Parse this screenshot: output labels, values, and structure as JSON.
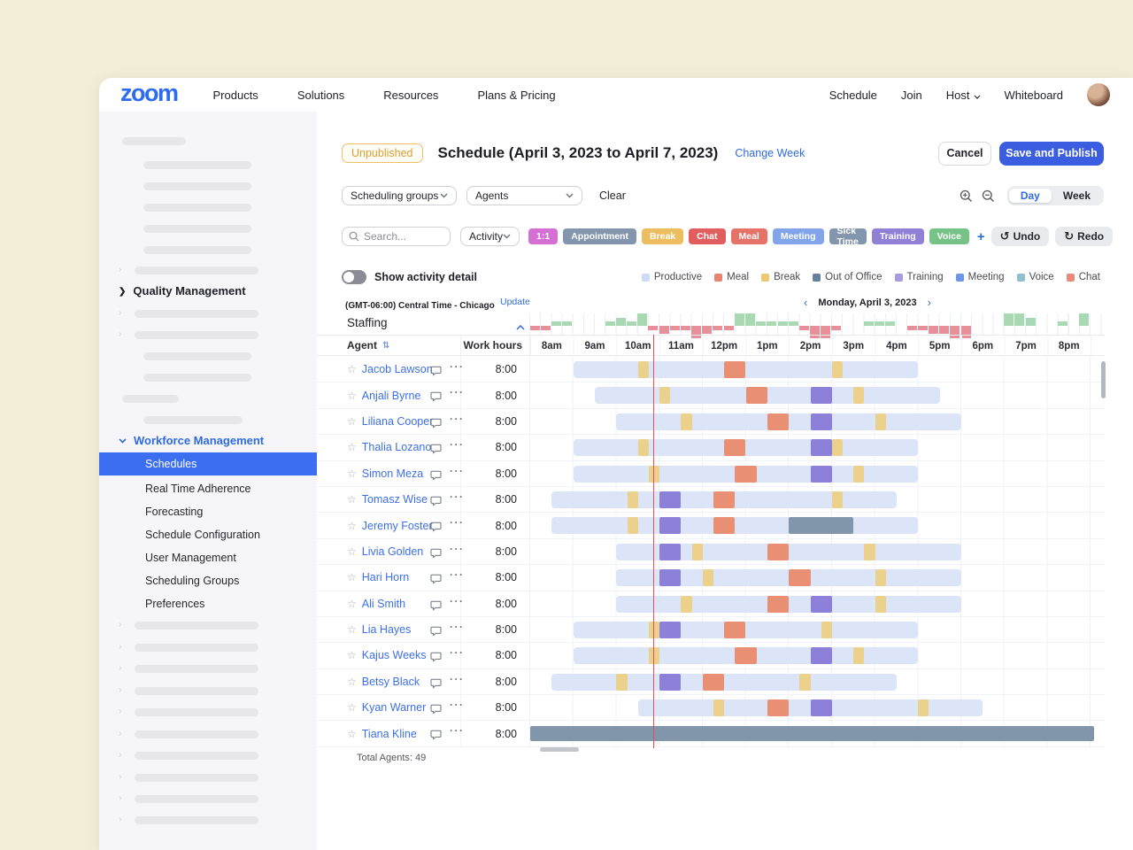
{
  "topnav": {
    "logo": "zoom",
    "left_items": [
      "Products",
      "Solutions",
      "Resources",
      "Plans & Pricing"
    ],
    "right_items": [
      "Schedule",
      "Join",
      "Host",
      "Whiteboard"
    ]
  },
  "sidebar": {
    "quality_management": "Quality Management",
    "workforce_management": "Workforce Management",
    "selected_item": "Schedules",
    "sub_items": [
      "Real Time Adherence",
      "Forecasting",
      "Schedule Configuration",
      "User Management",
      "Scheduling Groups",
      "Preferences"
    ]
  },
  "header": {
    "badge": "Unpublished",
    "title": "Schedule (April 3, 2023 to April 7, 2023)",
    "change_week": "Change Week",
    "cancel": "Cancel",
    "save": "Save and Publish"
  },
  "filters": {
    "scheduling_groups": "Scheduling groups",
    "agents_filter": "Agents",
    "clear": "Clear",
    "search_placeholder": "Search...",
    "activity": "Activity",
    "add": "+",
    "undo": "Undo",
    "redo": "Redo",
    "view_day": "Day",
    "view_week": "Week",
    "chips": [
      {
        "label": "1:1",
        "color": "#d66fd4"
      },
      {
        "label": "Appointment",
        "color": "#8496ae"
      },
      {
        "label": "Break",
        "color": "#ecbe5f"
      },
      {
        "label": "Chat",
        "color": "#e25d5d"
      },
      {
        "label": "Meal",
        "color": "#e57368"
      },
      {
        "label": "Meeting",
        "color": "#81a4ea"
      },
      {
        "label": "Sick Time",
        "color": "#8496ae"
      },
      {
        "label": "Training",
        "color": "#9181d6"
      },
      {
        "label": "Voice",
        "color": "#77c387"
      }
    ]
  },
  "detail_bar": {
    "show_activity_detail": "Show activity detail",
    "legend": [
      {
        "label": "Productive",
        "color": "#ccdcf5"
      },
      {
        "label": "Meal",
        "color": "#e8846d"
      },
      {
        "label": "Break",
        "color": "#ecca74"
      },
      {
        "label": "Out of Office",
        "color": "#64809c"
      },
      {
        "label": "Training",
        "color": "#a89ade"
      },
      {
        "label": "Meeting",
        "color": "#6f96e8"
      },
      {
        "label": "Voice",
        "color": "#8fc0cf"
      },
      {
        "label": "Chat",
        "color": "#e8897b"
      }
    ]
  },
  "schedule": {
    "timezone": "(GMT-06:00) Central Time - Chicago",
    "update": "Update",
    "date": "Monday, April 3, 2023",
    "staffing_label": "Staffing",
    "agent_col": "Agent",
    "work_hours_col": "Work hours",
    "hours": [
      "8am",
      "9am",
      "10am",
      "11am",
      "12pm",
      "1pm",
      "2pm",
      "3pm",
      "4pm",
      "5pm",
      "6pm",
      "7pm",
      "8pm"
    ],
    "total_agents": "Total Agents: 49",
    "staffing_data": [
      -1,
      -1,
      1,
      1,
      0,
      0,
      0,
      1,
      2,
      1,
      3,
      -1,
      -2,
      -1,
      -1,
      -3,
      -2,
      -1,
      -1,
      3,
      3,
      1,
      1,
      1,
      1,
      -1,
      -3,
      -3,
      -1,
      0,
      0,
      1,
      1,
      1,
      0,
      -1,
      -1,
      -2,
      -2,
      -3,
      -3,
      0,
      0,
      0,
      3,
      3,
      2,
      0,
      0,
      1,
      0,
      3
    ],
    "agents": [
      {
        "name": "Jacob Lawson",
        "work_hours": "8:00",
        "start": 1,
        "end": 9,
        "segments": [
          [
            "break",
            2.5,
            0.25
          ],
          [
            "meal",
            4.5,
            0.5
          ],
          [
            "break",
            7,
            0.25
          ]
        ]
      },
      {
        "name": "Anjali Byrne",
        "work_hours": "8:00",
        "start": 1.5,
        "end": 9.5,
        "segments": [
          [
            "break",
            3,
            0.25
          ],
          [
            "meal",
            5,
            0.5
          ],
          [
            "training",
            6.5,
            0.5
          ],
          [
            "break",
            7.5,
            0.25
          ]
        ]
      },
      {
        "name": "Liliana Cooper",
        "work_hours": "8:00",
        "start": 2,
        "end": 10,
        "segments": [
          [
            "break",
            3.5,
            0.25
          ],
          [
            "meal",
            5.5,
            0.5
          ],
          [
            "training",
            6.5,
            0.5
          ],
          [
            "break",
            8,
            0.25
          ]
        ]
      },
      {
        "name": "Thalia Lozano",
        "work_hours": "8:00",
        "start": 1,
        "end": 9,
        "segments": [
          [
            "break",
            2.5,
            0.25
          ],
          [
            "meal",
            4.5,
            0.5
          ],
          [
            "training",
            6.5,
            0.5
          ],
          [
            "break",
            7,
            0.25
          ]
        ]
      },
      {
        "name": "Simon Meza",
        "work_hours": "8:00",
        "start": 1,
        "end": 9,
        "segments": [
          [
            "break",
            2.75,
            0.25
          ],
          [
            "meal",
            4.75,
            0.5
          ],
          [
            "training",
            6.5,
            0.5
          ],
          [
            "break",
            7.5,
            0.25
          ]
        ]
      },
      {
        "name": "Tomasz Wise",
        "work_hours": "8:00",
        "start": 0.5,
        "end": 8.5,
        "segments": [
          [
            "break",
            2.25,
            0.25
          ],
          [
            "training",
            3,
            0.5
          ],
          [
            "meal",
            4.25,
            0.5
          ],
          [
            "break",
            7,
            0.25
          ]
        ]
      },
      {
        "name": "Jeremy Foster",
        "work_hours": "8:00",
        "start": 0.5,
        "end": 9,
        "segments": [
          [
            "break",
            2.25,
            0.25
          ],
          [
            "training",
            3,
            0.5
          ],
          [
            "meal",
            4.25,
            0.5
          ],
          [
            "out_of_office",
            6,
            1.5
          ]
        ]
      },
      {
        "name": "Livia Golden",
        "work_hours": "8:00",
        "start": 2,
        "end": 10,
        "segments": [
          [
            "training",
            3,
            0.5
          ],
          [
            "break",
            3.75,
            0.25
          ],
          [
            "meal",
            5.5,
            0.5
          ],
          [
            "break",
            7.75,
            0.25
          ]
        ]
      },
      {
        "name": "Hari Horn",
        "work_hours": "8:00",
        "start": 2,
        "end": 10,
        "segments": [
          [
            "training",
            3,
            0.5
          ],
          [
            "break",
            4,
            0.25
          ],
          [
            "meal",
            6,
            0.5
          ],
          [
            "break",
            8,
            0.25
          ]
        ]
      },
      {
        "name": "Ali Smith",
        "work_hours": "8:00",
        "start": 2,
        "end": 10,
        "segments": [
          [
            "break",
            3.5,
            0.25
          ],
          [
            "meal",
            5.5,
            0.5
          ],
          [
            "training",
            6.5,
            0.5
          ],
          [
            "break",
            8,
            0.25
          ]
        ]
      },
      {
        "name": "Lia Hayes",
        "work_hours": "8:00",
        "start": 1,
        "end": 9,
        "segments": [
          [
            "break",
            2.75,
            0.25
          ],
          [
            "training",
            3,
            0.5
          ],
          [
            "meal",
            4.5,
            0.5
          ],
          [
            "break",
            6.75,
            0.25
          ]
        ]
      },
      {
        "name": "Kajus Weeks",
        "work_hours": "8:00",
        "start": 1,
        "end": 9,
        "segments": [
          [
            "break",
            2.75,
            0.25
          ],
          [
            "meal",
            4.75,
            0.5
          ],
          [
            "training",
            6.5,
            0.5
          ],
          [
            "break",
            7.5,
            0.25
          ]
        ]
      },
      {
        "name": "Betsy Black",
        "work_hours": "8:00",
        "start": 0.5,
        "end": 8.5,
        "segments": [
          [
            "break",
            2,
            0.25
          ],
          [
            "training",
            3,
            0.5
          ],
          [
            "meal",
            4,
            0.5
          ],
          [
            "break",
            6.25,
            0.25
          ]
        ]
      },
      {
        "name": "Kyan Warner",
        "work_hours": "8:00",
        "start": 2.5,
        "end": 10.5,
        "segments": [
          [
            "break",
            4.25,
            0.25
          ],
          [
            "meal",
            5.5,
            0.5
          ],
          [
            "training",
            6.5,
            0.5
          ],
          [
            "break",
            9,
            0.25
          ]
        ]
      },
      {
        "name": "Tiana Kline",
        "work_hours": "8:00",
        "out_of_office_all_day": true
      }
    ]
  },
  "colors": {
    "brand_blue": "#2d6cf0",
    "link_blue": "#2f6bdf",
    "primary_button": "#3b5de0",
    "sidebar_selected": "#3b6ef0",
    "badge_amber": "#d8a032",
    "current_time_line": "#e05252",
    "staffing_over": "#a9d9b2",
    "staffing_under": "#e79099",
    "activity": {
      "productive": "#dbe5f7",
      "break": "#ecd18c",
      "meal": "#e88f74",
      "training": "#8c80d8",
      "out_of_office": "#8296ab"
    }
  }
}
